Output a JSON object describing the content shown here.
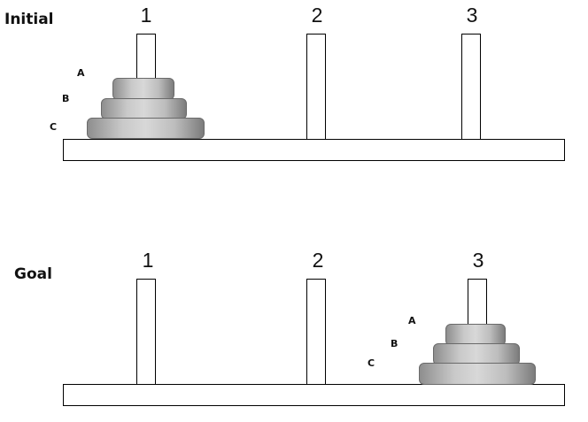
{
  "initial": {
    "title": "Initial",
    "pegs": [
      "1",
      "2",
      "3"
    ],
    "disk_labels": [
      "A",
      "B",
      "C"
    ],
    "disk_position": "peg-1"
  },
  "goal": {
    "title": "Goal",
    "pegs": [
      "1",
      "2",
      "3"
    ],
    "disk_labels": [
      "A",
      "B",
      "C"
    ],
    "disk_position": "peg-3"
  }
}
